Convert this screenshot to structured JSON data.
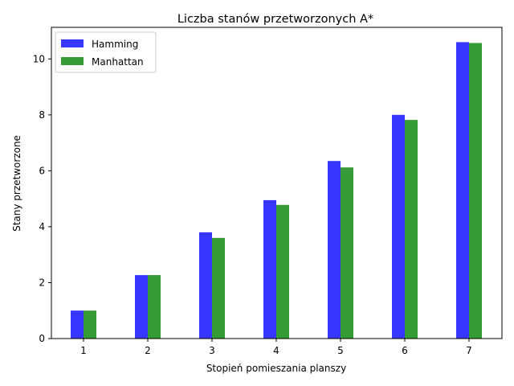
{
  "chart_data": {
    "type": "bar",
    "title": "Liczba stanów przetworzonych A*",
    "xlabel": "Stopień pomieszania planszy",
    "ylabel": "Stany przetworzone",
    "categories": [
      "1",
      "2",
      "3",
      "4",
      "5",
      "6",
      "7"
    ],
    "series": [
      {
        "name": "Hamming",
        "color": "#3333ff",
        "values": [
          1.0,
          2.27,
          3.8,
          4.95,
          6.35,
          8.0,
          10.6
        ]
      },
      {
        "name": "Manhattan",
        "color": "#339933",
        "values": [
          1.0,
          2.27,
          3.6,
          4.78,
          6.12,
          7.82,
          10.57
        ]
      }
    ],
    "ylim": [
      0,
      11.13
    ],
    "yticks": [
      0,
      2,
      4,
      6,
      8,
      10
    ],
    "grid": false,
    "legend_position": "top-left"
  }
}
